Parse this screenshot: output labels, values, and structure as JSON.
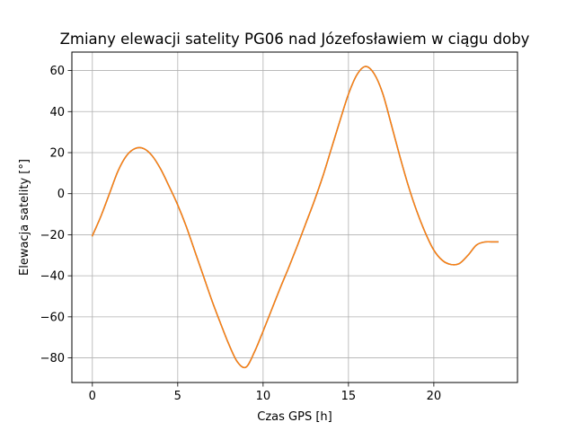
{
  "chart_data": {
    "type": "line",
    "title": "Zmiany elewacji satelity PG06 nad Józefosławiem w ciągu doby",
    "xlabel": "Czas GPS [h]",
    "ylabel": "Elewacja satelity [°]",
    "xlim": [
      -1.2,
      24.9
    ],
    "ylim": [
      -92,
      69
    ],
    "xticks": [
      0,
      5,
      10,
      15,
      20
    ],
    "yticks": [
      -80,
      -60,
      -40,
      -20,
      0,
      20,
      40,
      60
    ],
    "grid": true,
    "colors": [
      "#1f77b4",
      "#ff7f0e"
    ],
    "series": [
      {
        "x": [
          0,
          0.5,
          1,
          1.5,
          2,
          2.5,
          3,
          3.5,
          4,
          4.5,
          5,
          5.5,
          6,
          6.5,
          7,
          7.5,
          8,
          8.5,
          9,
          9.5,
          10,
          10.5,
          11,
          11.5,
          12,
          12.5,
          13,
          13.5,
          14,
          14.5,
          15,
          15.5,
          16,
          16.5,
          17,
          17.5,
          18,
          18.5,
          19,
          19.5,
          20,
          20.5,
          21,
          21.5,
          22,
          22.5,
          23,
          23.5,
          23.75
        ],
        "values": [
          -20.5,
          -11,
          0,
          11,
          18.5,
          22,
          22,
          18.5,
          12,
          3.5,
          -5.5,
          -16,
          -28,
          -40,
          -52,
          -63,
          -73.5,
          -82,
          -84.5,
          -77,
          -67,
          -56.5,
          -46,
          -36,
          -25.5,
          -14.5,
          -3.5,
          8.5,
          22,
          35.5,
          48.5,
          58,
          62,
          58.5,
          49,
          34,
          18.5,
          4,
          -8.5,
          -19,
          -27.5,
          -32.5,
          -34.5,
          -34,
          -30,
          -25,
          -23.5,
          -23.5,
          -23.5
        ]
      },
      {
        "x": [
          0,
          0.5,
          1,
          1.5,
          2,
          2.5,
          3,
          3.5,
          4,
          4.5,
          5,
          5.5,
          6,
          6.5,
          7,
          7.5,
          8,
          8.5,
          9,
          9.5,
          10,
          10.5,
          11,
          11.5,
          12,
          12.5,
          13,
          13.5,
          14,
          14.5,
          15,
          15.5,
          16,
          16.5,
          17,
          17.5,
          18,
          18.5,
          19,
          19.5,
          20,
          20.5,
          21,
          21.5,
          22,
          22.5,
          23,
          23.5,
          23.75
        ],
        "values": [
          -20.5,
          -11,
          0,
          11,
          18.5,
          22,
          22,
          18.5,
          12,
          3.5,
          -5.5,
          -16,
          -28,
          -40,
          -52,
          -63,
          -73.5,
          -82,
          -84.5,
          -77,
          -67,
          -56.5,
          -46,
          -36,
          -25.5,
          -14.5,
          -3.5,
          8.5,
          22,
          35.5,
          48.5,
          58,
          62,
          58.5,
          49,
          34,
          18.5,
          4,
          -8.5,
          -19,
          -27.5,
          -32.5,
          -34.5,
          -34,
          -30,
          -25,
          -23.5,
          -23.5,
          -23.5
        ]
      }
    ]
  }
}
